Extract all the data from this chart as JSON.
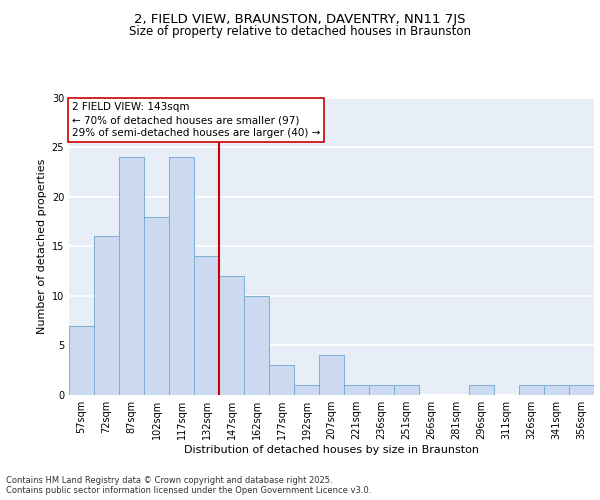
{
  "title1": "2, FIELD VIEW, BRAUNSTON, DAVENTRY, NN11 7JS",
  "title2": "Size of property relative to detached houses in Braunston",
  "xlabel": "Distribution of detached houses by size in Braunston",
  "ylabel": "Number of detached properties",
  "categories": [
    "57sqm",
    "72sqm",
    "87sqm",
    "102sqm",
    "117sqm",
    "132sqm",
    "147sqm",
    "162sqm",
    "177sqm",
    "192sqm",
    "207sqm",
    "221sqm",
    "236sqm",
    "251sqm",
    "266sqm",
    "281sqm",
    "296sqm",
    "311sqm",
    "326sqm",
    "341sqm",
    "356sqm"
  ],
  "values": [
    7,
    16,
    24,
    18,
    24,
    14,
    12,
    10,
    3,
    1,
    4,
    1,
    1,
    1,
    0,
    0,
    1,
    0,
    1,
    1,
    1
  ],
  "bar_color": "#ccd9f0",
  "bar_edge_color": "#7bafd4",
  "background_color": "#e8eef8",
  "grid_color": "#ffffff",
  "vline_index": 6,
  "vline_color": "#cc0000",
  "annotation_line1": "2 FIELD VIEW: 143sqm",
  "annotation_line2": "← 70% of detached houses are smaller (97)",
  "annotation_line3": "29% of semi-detached houses are larger (40) →",
  "annotation_box_color": "#cc0000",
  "ylim": [
    0,
    30
  ],
  "yticks": [
    0,
    5,
    10,
    15,
    20,
    25,
    30
  ],
  "footer": "Contains HM Land Registry data © Crown copyright and database right 2025.\nContains public sector information licensed under the Open Government Licence v3.0.",
  "title1_fontsize": 9.5,
  "title2_fontsize": 8.5,
  "ylabel_fontsize": 8,
  "xlabel_fontsize": 8,
  "tick_fontsize": 7,
  "annotation_fontsize": 7.5,
  "footer_fontsize": 6
}
